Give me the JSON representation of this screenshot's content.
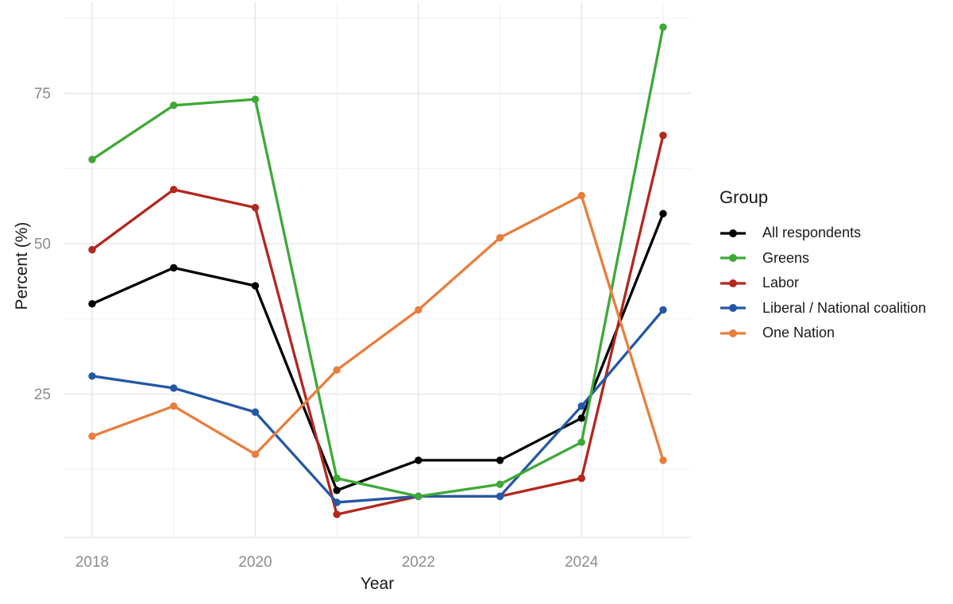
{
  "chart_data": {
    "type": "line",
    "x": [
      2018,
      2019,
      2020,
      2021,
      2022,
      2023,
      2024,
      2025
    ],
    "x_ticks": [
      2018,
      2020,
      2022,
      2024
    ],
    "x_tick_labels": [
      "2018",
      "2020",
      "2022",
      "2024"
    ],
    "y_ticks": [
      25,
      50,
      75
    ],
    "y_tick_labels": [
      "25",
      "50",
      "75"
    ],
    "y_minor_ticks": [
      12.5,
      37.5,
      62.5,
      87.5
    ],
    "ylim": [
      1,
      90
    ],
    "xlim": [
      2017.65,
      2025.35
    ],
    "grid": "major+minor",
    "xlabel": "Year",
    "ylabel": "Percent (%)",
    "legend_title": "Group",
    "legend_position": "right",
    "series": [
      {
        "name": "All respondents",
        "color": "#000000",
        "values": [
          40,
          46,
          43,
          9,
          14,
          14,
          21,
          55
        ]
      },
      {
        "name": "Greens",
        "color": "#3EA936",
        "values": [
          64,
          73,
          74,
          11,
          8,
          10,
          17,
          86
        ]
      },
      {
        "name": "Labor",
        "color": "#B2271E",
        "values": [
          49,
          59,
          56,
          5,
          8,
          8,
          11,
          68
        ]
      },
      {
        "name": "Liberal / National coalition",
        "color": "#2457A6",
        "values": [
          28,
          26,
          22,
          7,
          8,
          8,
          23,
          39
        ]
      },
      {
        "name": "One Nation",
        "color": "#E97E3C",
        "values": [
          18,
          23,
          15,
          29,
          39,
          51,
          58,
          14
        ]
      }
    ]
  },
  "colors": {
    "background": "#FFFFFF",
    "grid_major": "#E5E5E5",
    "grid_minor": "#F0F0F0",
    "tick_label": "#8C8C8C",
    "axis_title": "#1A1A1A",
    "legend_text": "#1A1A1A"
  }
}
